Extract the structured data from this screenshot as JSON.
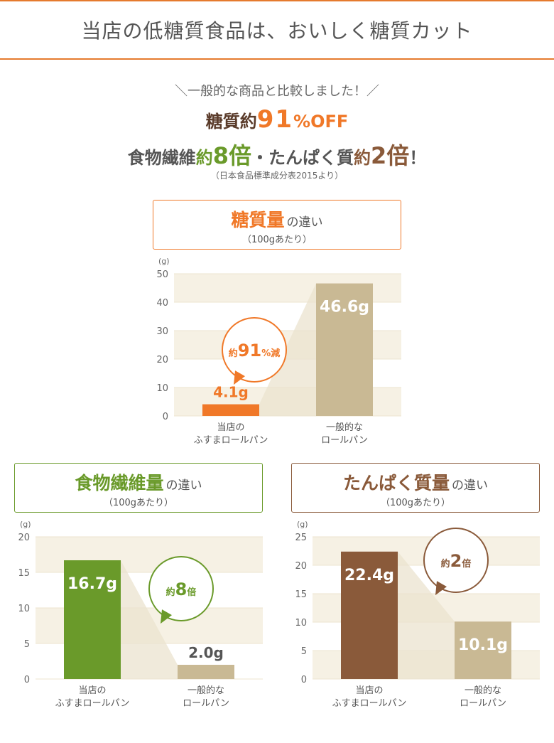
{
  "header": {
    "title": "当店の低糖質食品は、おいしく糖質カット"
  },
  "intro": {
    "comparison": "＼一般的な商品と比較しました！／",
    "sugar_prefix": "糖質約",
    "sugar_value": "91",
    "sugar_suffix": "%OFF",
    "fiber_label": "食物繊維",
    "fiber_yaku": "約",
    "fiber_value": "8倍",
    "separator": "・",
    "protein_label": "たんぱく質",
    "protein_yaku": "約",
    "protein_value": "2倍",
    "exclaim": "！",
    "source": "（日本食品標準成分表2015より）"
  },
  "panels": [
    {
      "title_main": "糖質量",
      "title_suffix": "の違い",
      "title_sub": "（100gあたり）",
      "accent": "#f07828",
      "badge_prefix": "約",
      "badge_value": "91",
      "badge_suffix": "%減"
    },
    {
      "title_main": "食物繊維量",
      "title_suffix": "の違い",
      "title_sub": "（100gあたり）",
      "accent": "#6a9a2a",
      "badge_prefix": "約",
      "badge_value": "8",
      "badge_suffix": "倍"
    },
    {
      "title_main": "たんぱく質量",
      "title_suffix": "の違い",
      "title_sub": "（100gあたり）",
      "accent": "#8a5a3a",
      "badge_prefix": "約",
      "badge_value": "2",
      "badge_suffix": "倍"
    }
  ],
  "chart_data": [
    {
      "type": "bar",
      "ylabel": "(g)",
      "ylim": [
        0,
        50
      ],
      "yticks": [
        0,
        10,
        20,
        30,
        40,
        50
      ],
      "categories": [
        [
          "当店の",
          "ふすまロールパン"
        ],
        [
          "一般的な",
          "ロールパン"
        ]
      ],
      "values": [
        4.1,
        46.6
      ],
      "value_labels": [
        "4.1g",
        "46.6g"
      ],
      "colors": [
        "#f07828",
        "#c9b994"
      ]
    },
    {
      "type": "bar",
      "ylabel": "(g)",
      "ylim": [
        0,
        20
      ],
      "yticks": [
        0,
        5,
        10,
        15,
        20
      ],
      "categories": [
        [
          "当店の",
          "ふすまロールパン"
        ],
        [
          "一般的な",
          "ロールパン"
        ]
      ],
      "values": [
        16.7,
        2.0
      ],
      "value_labels": [
        "16.7g",
        "2.0g"
      ],
      "colors": [
        "#6a9a2a",
        "#c9b994"
      ]
    },
    {
      "type": "bar",
      "ylabel": "(g)",
      "ylim": [
        0,
        25
      ],
      "yticks": [
        0,
        5,
        10,
        15,
        20,
        25
      ],
      "categories": [
        [
          "当店の",
          "ふすまロールパン"
        ],
        [
          "一般的な",
          "ロールパン"
        ]
      ],
      "values": [
        22.4,
        10.1
      ],
      "value_labels": [
        "22.4g",
        "10.1g"
      ],
      "colors": [
        "#8a5a3a",
        "#c9b994"
      ]
    }
  ]
}
